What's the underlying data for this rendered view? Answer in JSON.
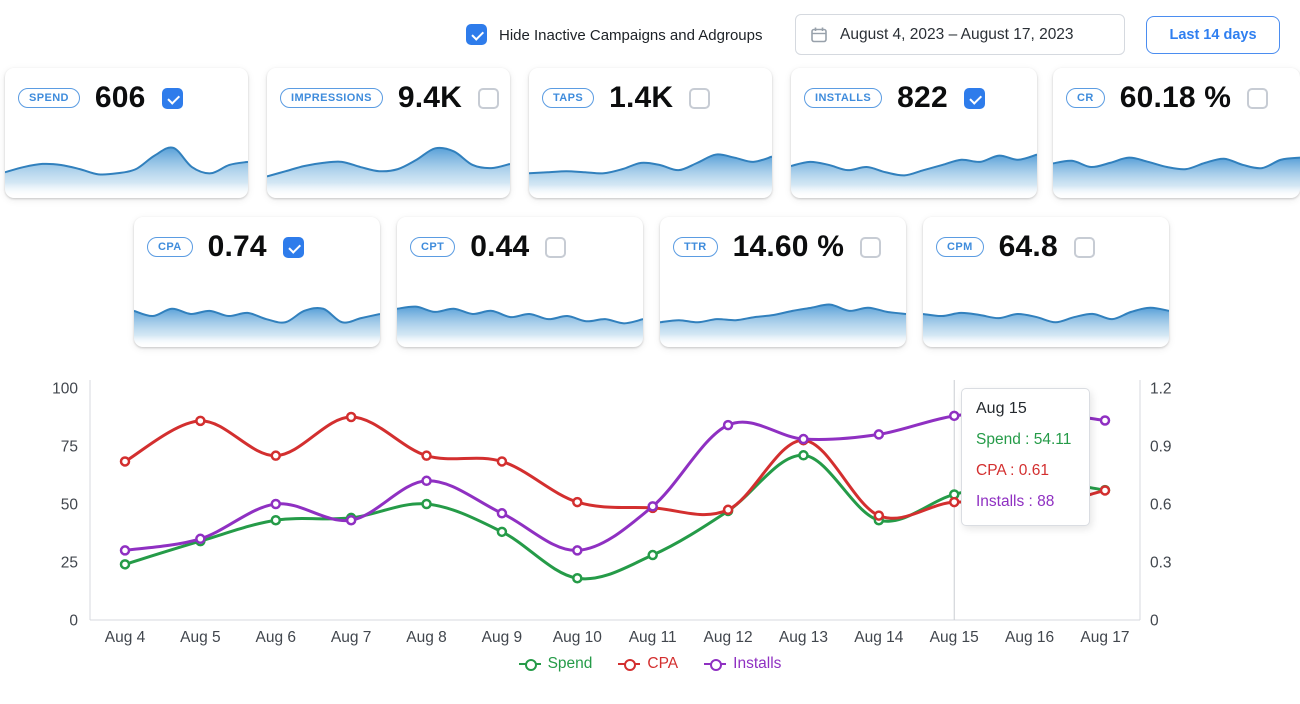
{
  "topbar": {
    "hide_inactive": {
      "label": "Hide Inactive Campaigns and Adgroups",
      "checked": true
    },
    "date_range": "August 4, 2023 – August 17, 2023",
    "last14_label": "Last 14 days"
  },
  "colors": {
    "accent_blue": "#2e7ceb",
    "badge_blue": "#3f8cdc",
    "spark_stroke": "#3180bd",
    "spark_fill_top": "#4f9bd6",
    "spend_green": "#259b48",
    "cpa_red": "#d32f2f",
    "installs_purple": "#8f30c2"
  },
  "metric_cards_row1": [
    {
      "label": "SPEND",
      "value": "606",
      "checked": true,
      "spark": [
        38,
        48,
        54,
        52,
        44,
        34,
        36,
        44,
        70,
        85,
        48,
        36,
        52,
        58
      ]
    },
    {
      "label": "IMPRESSIONS",
      "value": "9.4K",
      "checked": false,
      "spark": [
        30,
        40,
        50,
        56,
        58,
        48,
        40,
        44,
        62,
        84,
        78,
        52,
        46,
        54
      ]
    },
    {
      "label": "TAPS",
      "value": "1.4K",
      "checked": false,
      "spark": [
        36,
        38,
        40,
        38,
        36,
        44,
        56,
        52,
        42,
        56,
        72,
        66,
        58,
        68
      ]
    },
    {
      "label": "INSTALLS",
      "value": "822",
      "checked": true,
      "spark": [
        50,
        58,
        52,
        42,
        48,
        38,
        32,
        42,
        52,
        62,
        58,
        70,
        62,
        72
      ]
    },
    {
      "label": "CR",
      "value": "60.18 %",
      "checked": false,
      "spark": [
        55,
        60,
        48,
        56,
        66,
        58,
        48,
        44,
        56,
        64,
        52,
        46,
        62,
        66
      ]
    }
  ],
  "metric_cards_row2": [
    {
      "label": "CPA",
      "value": "0.74",
      "checked": true,
      "spark": [
        58,
        48,
        62,
        52,
        58,
        48,
        54,
        42,
        36,
        58,
        62,
        36,
        44,
        52
      ]
    },
    {
      "label": "CPT",
      "value": "0.44",
      "checked": false,
      "spark": [
        62,
        66,
        56,
        62,
        52,
        58,
        46,
        52,
        42,
        48,
        38,
        42,
        34,
        42
      ]
    },
    {
      "label": "TTR",
      "value": "14.60 %",
      "checked": false,
      "spark": [
        36,
        40,
        36,
        42,
        40,
        46,
        50,
        58,
        64,
        70,
        58,
        64,
        56,
        52
      ]
    },
    {
      "label": "CPM",
      "value": "64.8",
      "checked": false,
      "spark": [
        52,
        48,
        54,
        50,
        44,
        52,
        46,
        36,
        46,
        52,
        42,
        56,
        64,
        58
      ]
    }
  ],
  "chart_data": {
    "type": "line",
    "categories": [
      "Aug 4",
      "Aug 5",
      "Aug 6",
      "Aug 7",
      "Aug 8",
      "Aug 9",
      "Aug 10",
      "Aug 11",
      "Aug 12",
      "Aug 13",
      "Aug 14",
      "Aug 15",
      "Aug 16",
      "Aug 17"
    ],
    "series": [
      {
        "name": "Spend",
        "axis": "left",
        "color": "#259b48",
        "values": [
          24,
          34,
          43,
          44,
          50,
          38,
          18,
          28,
          47,
          71,
          43,
          54.11,
          60,
          56
        ]
      },
      {
        "name": "CPA",
        "axis": "right",
        "color": "#d32f2f",
        "values": [
          0.82,
          1.03,
          0.85,
          1.05,
          0.85,
          0.82,
          0.61,
          0.58,
          0.57,
          0.93,
          0.54,
          0.61,
          0.58,
          0.67
        ]
      },
      {
        "name": "Installs",
        "axis": "left",
        "color": "#8f30c2",
        "values": [
          30,
          35,
          50,
          43,
          60,
          46,
          30,
          49,
          84,
          78,
          80,
          88,
          90,
          86
        ]
      }
    ],
    "left_axis": {
      "range": [
        0,
        100
      ],
      "ticks": [
        0,
        25,
        50,
        75,
        100
      ]
    },
    "right_axis": {
      "range": [
        0,
        1.2
      ],
      "ticks": [
        0,
        0.3,
        0.6,
        0.9,
        1.2
      ]
    },
    "grid": false,
    "legend_position": "bottom",
    "tooltip": {
      "title": "Aug 15",
      "x_index": 11,
      "lines": [
        {
          "series": "Spend",
          "text": "Spend : 54.11"
        },
        {
          "series": "CPA",
          "text": "CPA : 0.61"
        },
        {
          "series": "Installs",
          "text": "Installs : 88"
        }
      ]
    }
  }
}
